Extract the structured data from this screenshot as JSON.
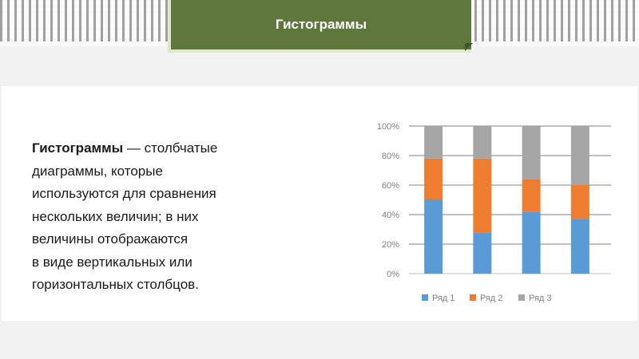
{
  "header": {
    "title": "Гистограммы"
  },
  "definition": {
    "term": "Гистограммы",
    "dash": " — ",
    "lines": [
      "столбчатые",
      "диаграммы, которые",
      "используются для сравнения",
      "нескольких величин; в них",
      "величины отображаются",
      "в виде вертикальных или",
      "горизонтальных столбцов."
    ]
  },
  "chart_data": {
    "type": "bar",
    "stacked": "percent",
    "categories": [
      "",
      "",
      "",
      ""
    ],
    "series": [
      {
        "name": "Ряд 1",
        "color": "#5b9bd5",
        "values": [
          50,
          28,
          42,
          37
        ]
      },
      {
        "name": "Ряд 2",
        "color": "#ed7d31",
        "values": [
          28,
          50,
          22,
          23
        ]
      },
      {
        "name": "Ряд 3",
        "color": "#a5a5a5",
        "values": [
          22,
          22,
          36,
          40
        ]
      }
    ],
    "yticks": [
      "0%",
      "20%",
      "40%",
      "60%",
      "80%",
      "100%"
    ],
    "ylim": [
      0,
      100
    ],
    "grid": true,
    "legend_position": "bottom"
  }
}
